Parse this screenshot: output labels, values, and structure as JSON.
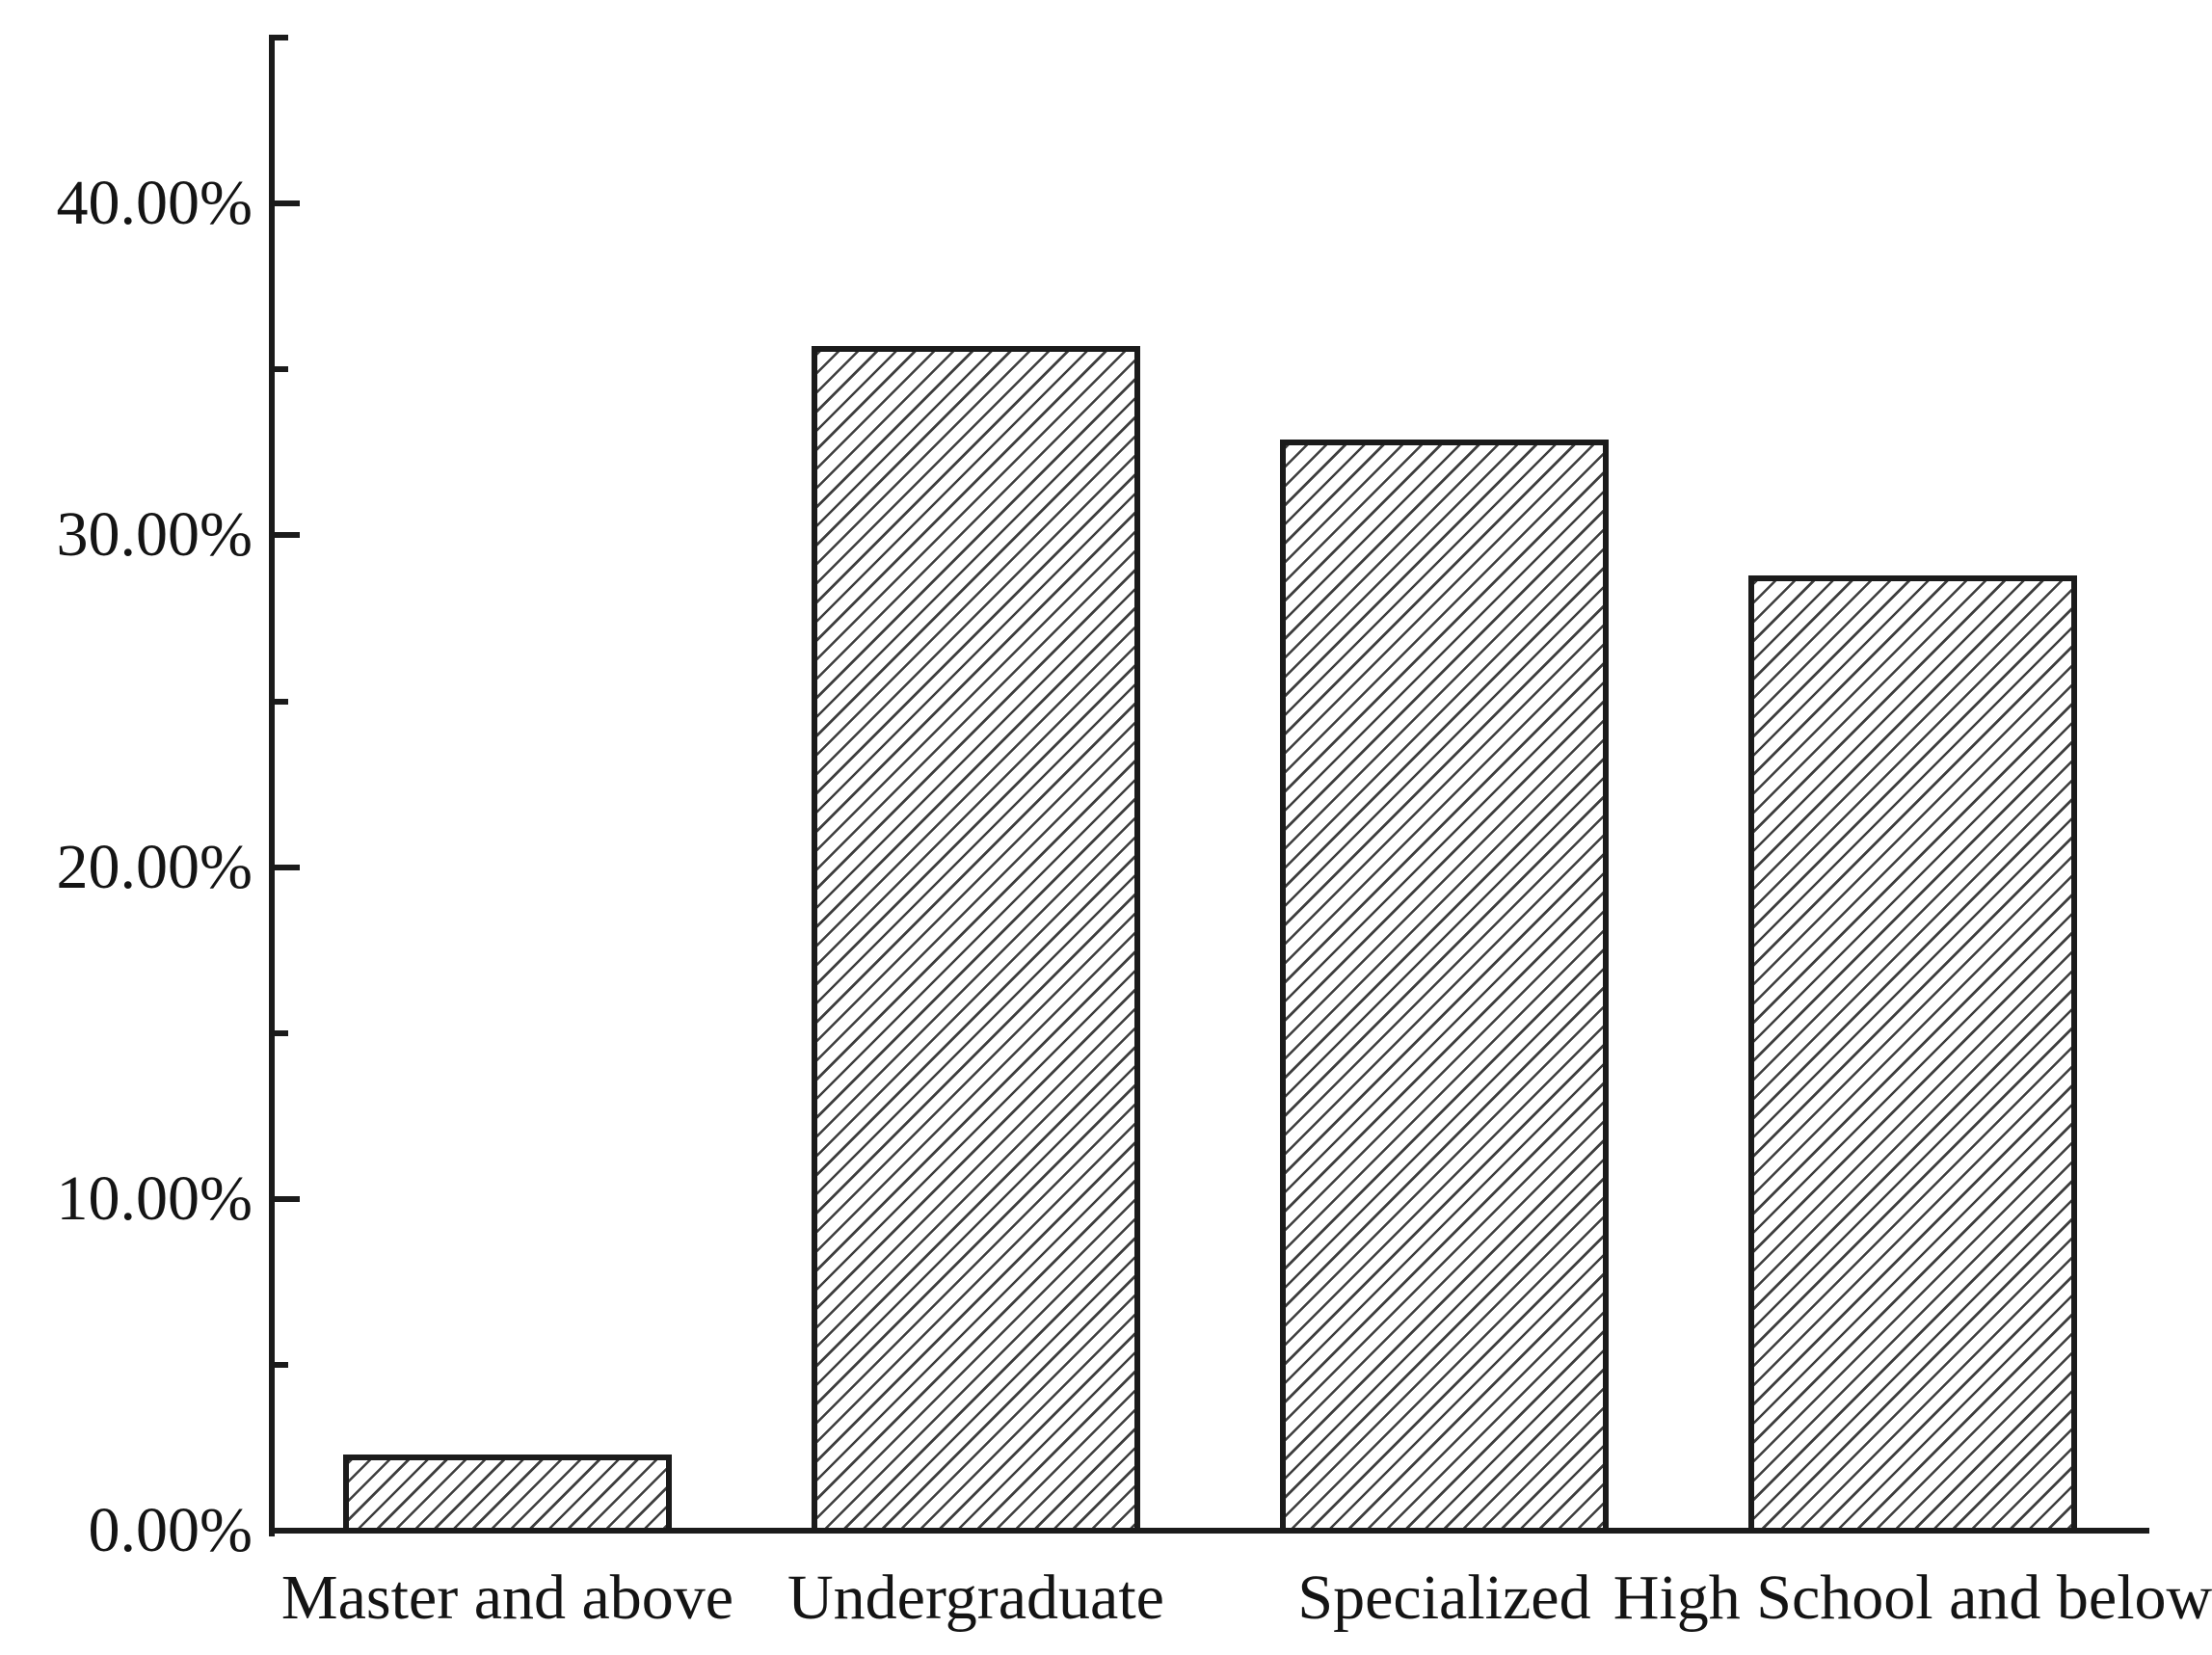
{
  "chart_data": {
    "type": "bar",
    "title": "",
    "xlabel": "",
    "ylabel": "",
    "categories": [
      "Master and above",
      "Undergraduate",
      "Specialized",
      "High School and below"
    ],
    "values": [
      2.3,
      35.7,
      32.9,
      28.8
    ],
    "unit": "%",
    "ylim": [
      0,
      45
    ],
    "yticks_major": [
      0,
      10,
      20,
      30,
      40
    ],
    "yticks_minor": [
      5,
      15,
      25,
      35,
      45
    ],
    "ytick_labels": [
      "0.00%",
      "10.00%",
      "20.00%",
      "30.00%",
      "40.00%"
    ],
    "grid": false,
    "legend": false,
    "bar_hatch": "forward-diagonal",
    "colors": {
      "background": "#ffffff",
      "axis": "#1b1b1b",
      "text": "#141414",
      "bar_fill": "#ffffff",
      "bar_border": "#1b1b1b",
      "hatch_line": "#3e3e3e"
    }
  }
}
